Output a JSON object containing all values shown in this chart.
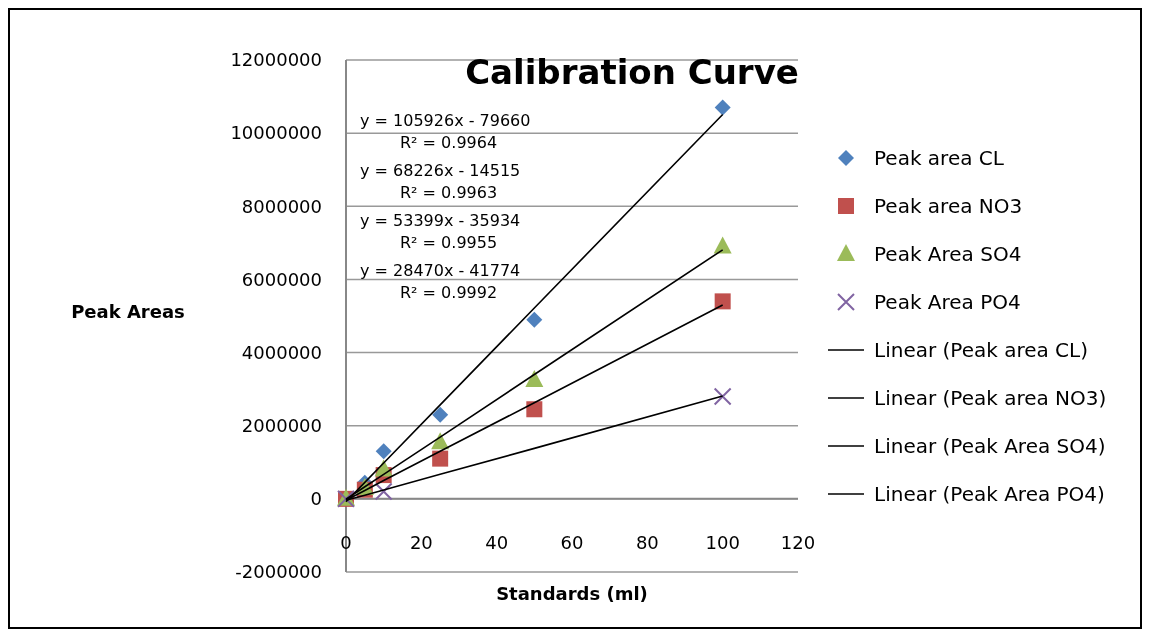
{
  "chart_data": {
    "type": "scatter",
    "title": "Calibration Curve",
    "xlabel": "Standards (ml)",
    "ylabel": "Peak Areas",
    "x": [
      0,
      5,
      10,
      25,
      50,
      100
    ],
    "series": [
      {
        "name": "Peak area CL",
        "color": "#4f81bd",
        "marker": "diamond",
        "values": [
          null,
          440000,
          1300000,
          2300000,
          4900000,
          10700000
        ]
      },
      {
        "name": "Peak area NO3",
        "color": "#c0504d",
        "marker": "square",
        "values": [
          0,
          250000,
          650000,
          1100000,
          2450000,
          5400000
        ]
      },
      {
        "name": "Peak Area SO4",
        "color": "#9bbb59",
        "marker": "triangle",
        "values": [
          0,
          300000,
          800000,
          1550000,
          3250000,
          6900000
        ]
      },
      {
        "name": "Peak Area PO4",
        "color": "#8064a2",
        "marker": "cross",
        "values": [
          0,
          null,
          200000,
          null,
          null,
          2800000
        ]
      },
      {
        "name": "Linear (Peak area CL)",
        "type": "line",
        "color": "#000000",
        "marker": "none",
        "values": [
          -80000,
          450000,
          980000,
          2570000,
          5220000,
          10510000
        ]
      },
      {
        "name": "Linear (Peak area NO3)",
        "type": "line",
        "color": "#000000",
        "marker": "none",
        "values": [
          -40000,
          230000,
          500000,
          1300000,
          2630000,
          5300000
        ]
      },
      {
        "name": "Linear (Peak Area SO4)",
        "type": "line",
        "color": "#000000",
        "marker": "none",
        "values": [
          -10000,
          330000,
          670000,
          1690000,
          3400000,
          6810000
        ]
      },
      {
        "name": "Linear (Peak Area PO4)",
        "type": "line",
        "color": "#000000",
        "marker": "none",
        "values": [
          -40000,
          100000,
          240000,
          670000,
          1380000,
          2810000
        ]
      }
    ],
    "annotations": [
      "y = 105926x - 79660",
      "R² = 0.9964",
      "y = 68226x - 14515",
      "R² = 0.9963",
      "y = 53399x - 35934",
      "R² = 0.9955",
      "y = 28470x - 41774",
      "R² = 0.9992"
    ],
    "xlim": [
      0,
      120
    ],
    "xticks": [
      0,
      20,
      40,
      60,
      80,
      100,
      120
    ],
    "ylim": [
      -2000000,
      12000000
    ],
    "yticks": [
      -2000000,
      0,
      2000000,
      4000000,
      6000000,
      8000000,
      10000000,
      12000000
    ],
    "grid": "y",
    "legend": "right"
  }
}
